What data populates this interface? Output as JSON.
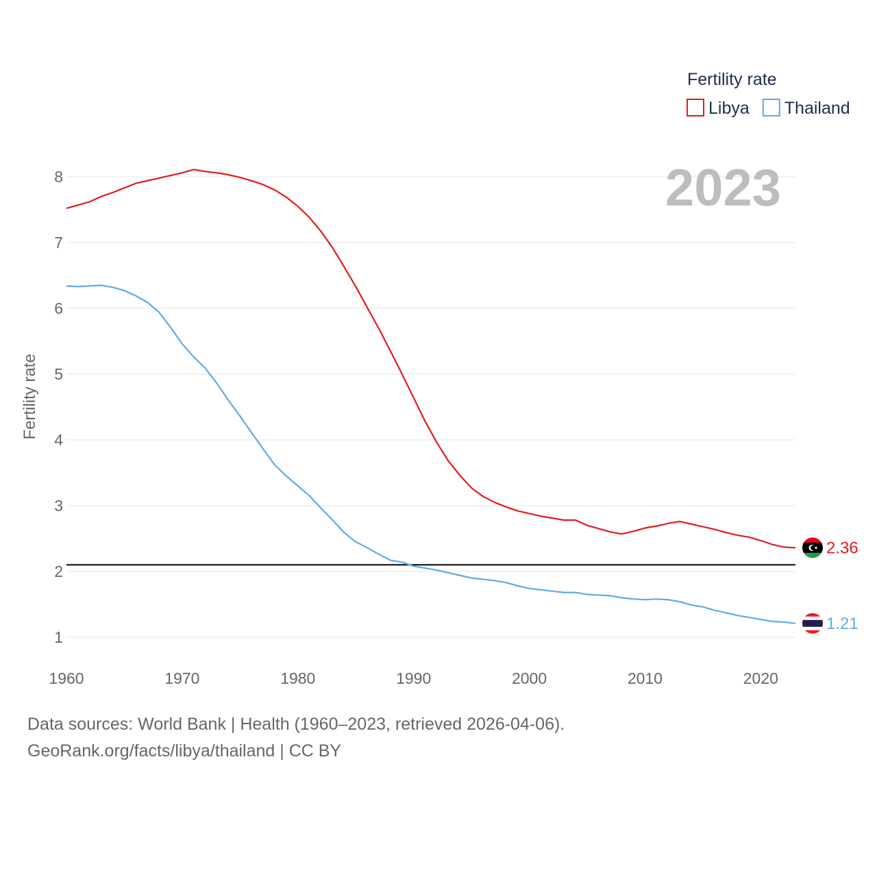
{
  "chart_data": {
    "type": "line",
    "ylabel": "Fertility rate",
    "xlabel": "",
    "xlim": [
      1960,
      2023
    ],
    "ylim": [
      0.6,
      8.5
    ],
    "x_ticks": [
      1960,
      1970,
      1980,
      1990,
      2000,
      2010,
      2020
    ],
    "y_ticks": [
      1,
      2,
      3,
      4,
      5,
      6,
      7,
      8
    ],
    "year_label": "2023",
    "legend": {
      "title": "Fertility rate",
      "position": "top-right"
    },
    "reference_line": {
      "y": 2.1,
      "color": "#000000"
    },
    "x": [
      1960,
      1961,
      1962,
      1963,
      1964,
      1965,
      1966,
      1967,
      1968,
      1969,
      1970,
      1971,
      1972,
      1973,
      1974,
      1975,
      1976,
      1977,
      1978,
      1979,
      1980,
      1981,
      1982,
      1983,
      1984,
      1985,
      1986,
      1987,
      1988,
      1989,
      1990,
      1991,
      1992,
      1993,
      1994,
      1995,
      1996,
      1997,
      1998,
      1999,
      2000,
      2001,
      2002,
      2003,
      2004,
      2005,
      2006,
      2007,
      2008,
      2009,
      2010,
      2011,
      2012,
      2013,
      2014,
      2015,
      2016,
      2017,
      2018,
      2019,
      2020,
      2021,
      2022,
      2023
    ],
    "series": [
      {
        "name": "Libya",
        "color": "#e31a1c",
        "end_label": "2.36",
        "flag": "libya-flag",
        "values": [
          7.52,
          7.57,
          7.62,
          7.7,
          7.76,
          7.83,
          7.9,
          7.94,
          7.98,
          8.02,
          8.06,
          8.11,
          8.08,
          8.06,
          8.03,
          7.99,
          7.94,
          7.88,
          7.8,
          7.69,
          7.55,
          7.38,
          7.17,
          6.92,
          6.63,
          6.33,
          6.01,
          5.69,
          5.35,
          5.0,
          4.64,
          4.28,
          3.96,
          3.68,
          3.46,
          3.27,
          3.14,
          3.05,
          2.98,
          2.92,
          2.88,
          2.84,
          2.81,
          2.78,
          2.78,
          2.7,
          2.65,
          2.6,
          2.57,
          2.61,
          2.66,
          2.69,
          2.73,
          2.76,
          2.72,
          2.68,
          2.64,
          2.59,
          2.55,
          2.52,
          2.47,
          2.41,
          2.37,
          2.36
        ]
      },
      {
        "name": "Thailand",
        "color": "#5ea9e6",
        "end_label": "1.21",
        "flag": "thailand-flag",
        "values": [
          6.34,
          6.33,
          6.34,
          6.35,
          6.32,
          6.27,
          6.19,
          6.09,
          5.94,
          5.71,
          5.46,
          5.26,
          5.09,
          4.86,
          4.6,
          4.36,
          4.11,
          3.86,
          3.62,
          3.45,
          3.3,
          3.15,
          2.96,
          2.78,
          2.59,
          2.45,
          2.36,
          2.26,
          2.17,
          2.14,
          2.08,
          2.05,
          2.02,
          1.98,
          1.94,
          1.9,
          1.88,
          1.86,
          1.83,
          1.78,
          1.74,
          1.72,
          1.7,
          1.68,
          1.68,
          1.65,
          1.64,
          1.63,
          1.6,
          1.58,
          1.57,
          1.58,
          1.57,
          1.54,
          1.49,
          1.46,
          1.41,
          1.37,
          1.33,
          1.3,
          1.27,
          1.24,
          1.23,
          1.21
        ]
      }
    ]
  },
  "footer": {
    "line1": "Data sources: World Bank | Health (1960–2023, retrieved 2026-04-06).",
    "line2": "GeoRank.org/facts/libya/thailand | CC BY"
  }
}
